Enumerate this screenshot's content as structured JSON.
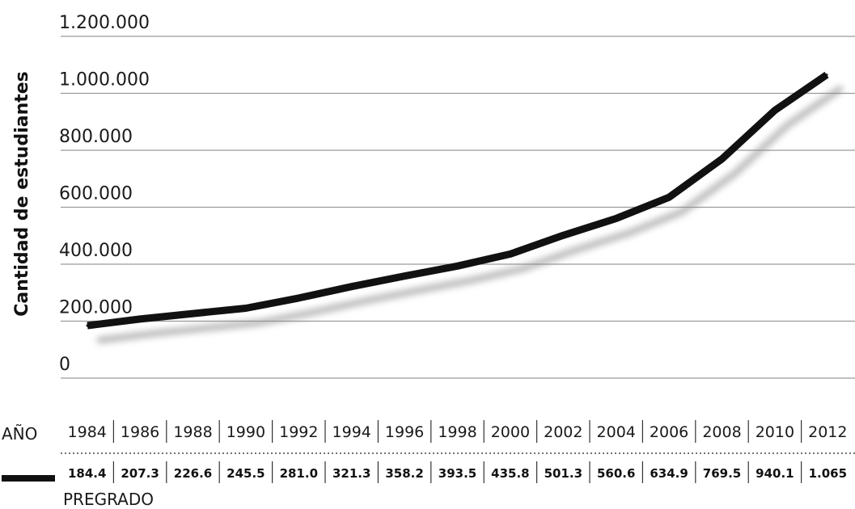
{
  "chart_data": {
    "type": "line",
    "ylabel": "Cantidad de estudiantes",
    "yticks": [
      "0",
      "200.000",
      "400.000",
      "600.000",
      "800.000",
      "1.000.000",
      "1.200.000"
    ],
    "ytick_values": [
      0,
      200000,
      400000,
      600000,
      800000,
      1000000,
      1200000
    ],
    "ylim": [
      0,
      1200000
    ],
    "grid": true,
    "x_row_label": "AÑO",
    "x": [
      "1984",
      "1986",
      "1988",
      "1990",
      "1992",
      "1994",
      "1996",
      "1998",
      "2000",
      "2002",
      "2004",
      "2006",
      "2008",
      "2010",
      "2012"
    ],
    "series": [
      {
        "name": "PREGRADO",
        "values": [
          184400,
          207300,
          226600,
          245500,
          281000,
          321300,
          358200,
          393500,
          435800,
          501300,
          560600,
          634900,
          769500,
          940100,
          1065000
        ],
        "value_labels": [
          "184.4",
          "207.3",
          "226.6",
          "245.5",
          "281.0",
          "321.3",
          "358.2",
          "393.5",
          "435.8",
          "501.3",
          "560.6",
          "634.9",
          "769.5",
          "940.1",
          "1.065"
        ],
        "color": "#111111"
      }
    ]
  }
}
